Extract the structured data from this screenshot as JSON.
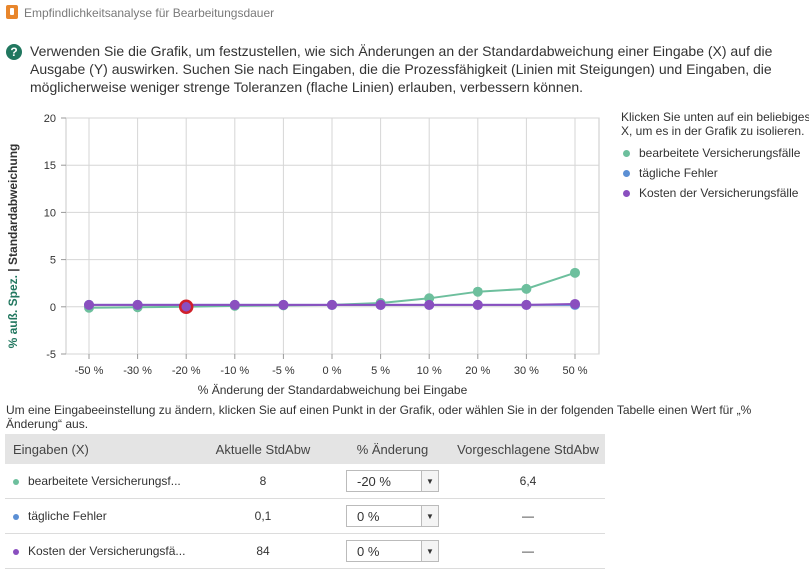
{
  "window": {
    "title": "Empfindlichkeitsanalyse für Bearbeitungsdauer"
  },
  "instructions": "Verwenden Sie die Grafik, um festzustellen, wie sich Änderungen an der Standardabweichung einer Eingabe (X) auf die Ausgabe (Y) auswirken. Suchen Sie nach Eingaben, die die Prozessfähigkeit (Linien mit Steigungen) und Eingaben, die möglicherweise weniger strenge Toleranzen (flache Linien) erlauben, verbessern können.",
  "legend": {
    "intro": "Klicken Sie unten auf ein beliebiges X, um es in der Grafik zu isolieren.",
    "items": [
      {
        "label": "bearbeitete Versicherungsfälle",
        "color": "#6dbf9d"
      },
      {
        "label": "tägliche Fehler",
        "color": "#5b8fd4"
      },
      {
        "label": "Kosten der Versicherungsfälle",
        "color": "#8a4fbf"
      }
    ]
  },
  "chart_data": {
    "type": "line",
    "xlabel": "% Änderung der Standardabweichung bei Eingabe",
    "ylabel_left": "% auß. Spez.",
    "ylabel_sep": "|",
    "ylabel_right": "Standardabweichung",
    "ylim": [
      -5,
      20
    ],
    "yticks": [
      "-5",
      "0",
      "5",
      "10",
      "15",
      "20"
    ],
    "categories": [
      "-50 %",
      "-30 %",
      "-20 %",
      "-10 %",
      "-5 %",
      "0 %",
      "5 %",
      "10 %",
      "20 %",
      "30 %",
      "50 %"
    ],
    "grid": true,
    "series": [
      {
        "name": "bearbeitete Versicherungsfälle",
        "color": "#6dbf9d",
        "values": [
          -0.1,
          -0.05,
          0.0,
          0.1,
          0.15,
          0.2,
          0.4,
          0.9,
          1.6,
          1.9,
          3.6
        ]
      },
      {
        "name": "tägliche Fehler",
        "color": "#5b8fd4",
        "values": [
          0.2,
          0.2,
          0.2,
          0.2,
          0.2,
          0.2,
          0.2,
          0.2,
          0.2,
          0.2,
          0.2
        ]
      },
      {
        "name": "Kosten der Versicherungsfälle",
        "color": "#8a4fbf",
        "values": [
          0.2,
          0.2,
          0.2,
          0.2,
          0.2,
          0.2,
          0.2,
          0.2,
          0.2,
          0.2,
          0.3
        ]
      }
    ],
    "selected": {
      "category": "-20 %",
      "value": 0.0,
      "color": "#d0202a"
    }
  },
  "table_note": "Um eine Eingabeeinstellung zu ändern, klicken Sie auf einen Punkt in der Grafik, oder wählen Sie in der folgenden Tabelle einen Wert für „% Änderung“ aus.",
  "table": {
    "headers": [
      "Eingaben (X)",
      "Aktuelle StdAbw",
      "% Änderung",
      "Vorgeschlagene StdAbw"
    ],
    "rows": [
      {
        "name": "bearbeitete Versicherungsf...",
        "color": "#6dbf9d",
        "current": "8",
        "change": "-20 %",
        "suggested": "6,4"
      },
      {
        "name": "tägliche Fehler",
        "color": "#5b8fd4",
        "current": "0,1",
        "change": "0 %",
        "suggested": "—"
      },
      {
        "name": "Kosten der Versicherungsfä...",
        "color": "#8a4fbf",
        "current": "84",
        "change": "0 %",
        "suggested": "—"
      }
    ]
  }
}
